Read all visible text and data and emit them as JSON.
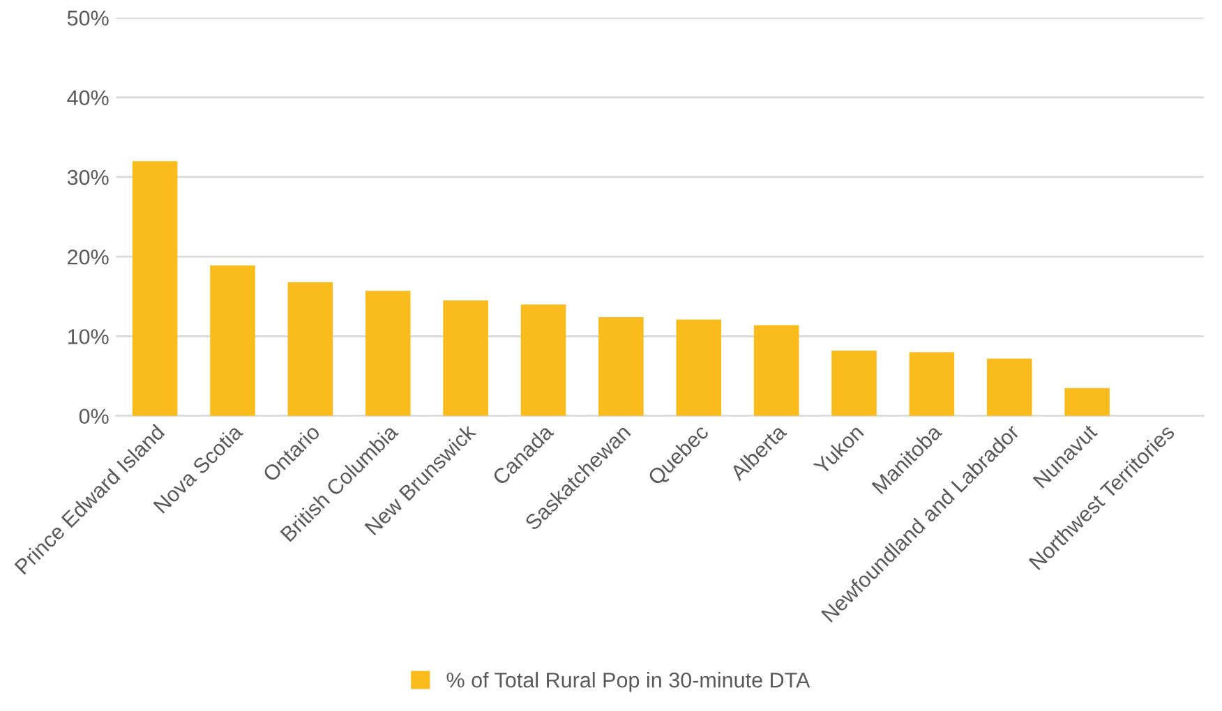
{
  "chart_data": {
    "type": "bar",
    "categories": [
      "Prince Edward Island",
      "Nova Scotia",
      "Ontario",
      "British Columbia",
      "New Brunswick",
      "Canada",
      "Saskatchewan",
      "Quebec",
      "Alberta",
      "Yukon",
      "Manitoba",
      "Newfoundland and Labrador",
      "Nunavut",
      "Northwest Territories"
    ],
    "series": [
      {
        "name": "% of Total Rural Pop in 30-minute DTA",
        "color": "#f9bc1c",
        "values": [
          32.0,
          18.9,
          16.8,
          15.7,
          14.5,
          14.0,
          12.4,
          12.1,
          11.4,
          8.2,
          8.0,
          7.2,
          3.5,
          0
        ]
      }
    ],
    "ylim": [
      0,
      50
    ],
    "yticks": [
      {
        "value": 0,
        "label": "0%"
      },
      {
        "value": 10,
        "label": "10%"
      },
      {
        "value": 20,
        "label": "20%"
      },
      {
        "value": 30,
        "label": "30%"
      },
      {
        "value": 40,
        "label": "40%"
      },
      {
        "value": 50,
        "label": "50%"
      }
    ],
    "grid": "y",
    "legend": "bottom"
  }
}
